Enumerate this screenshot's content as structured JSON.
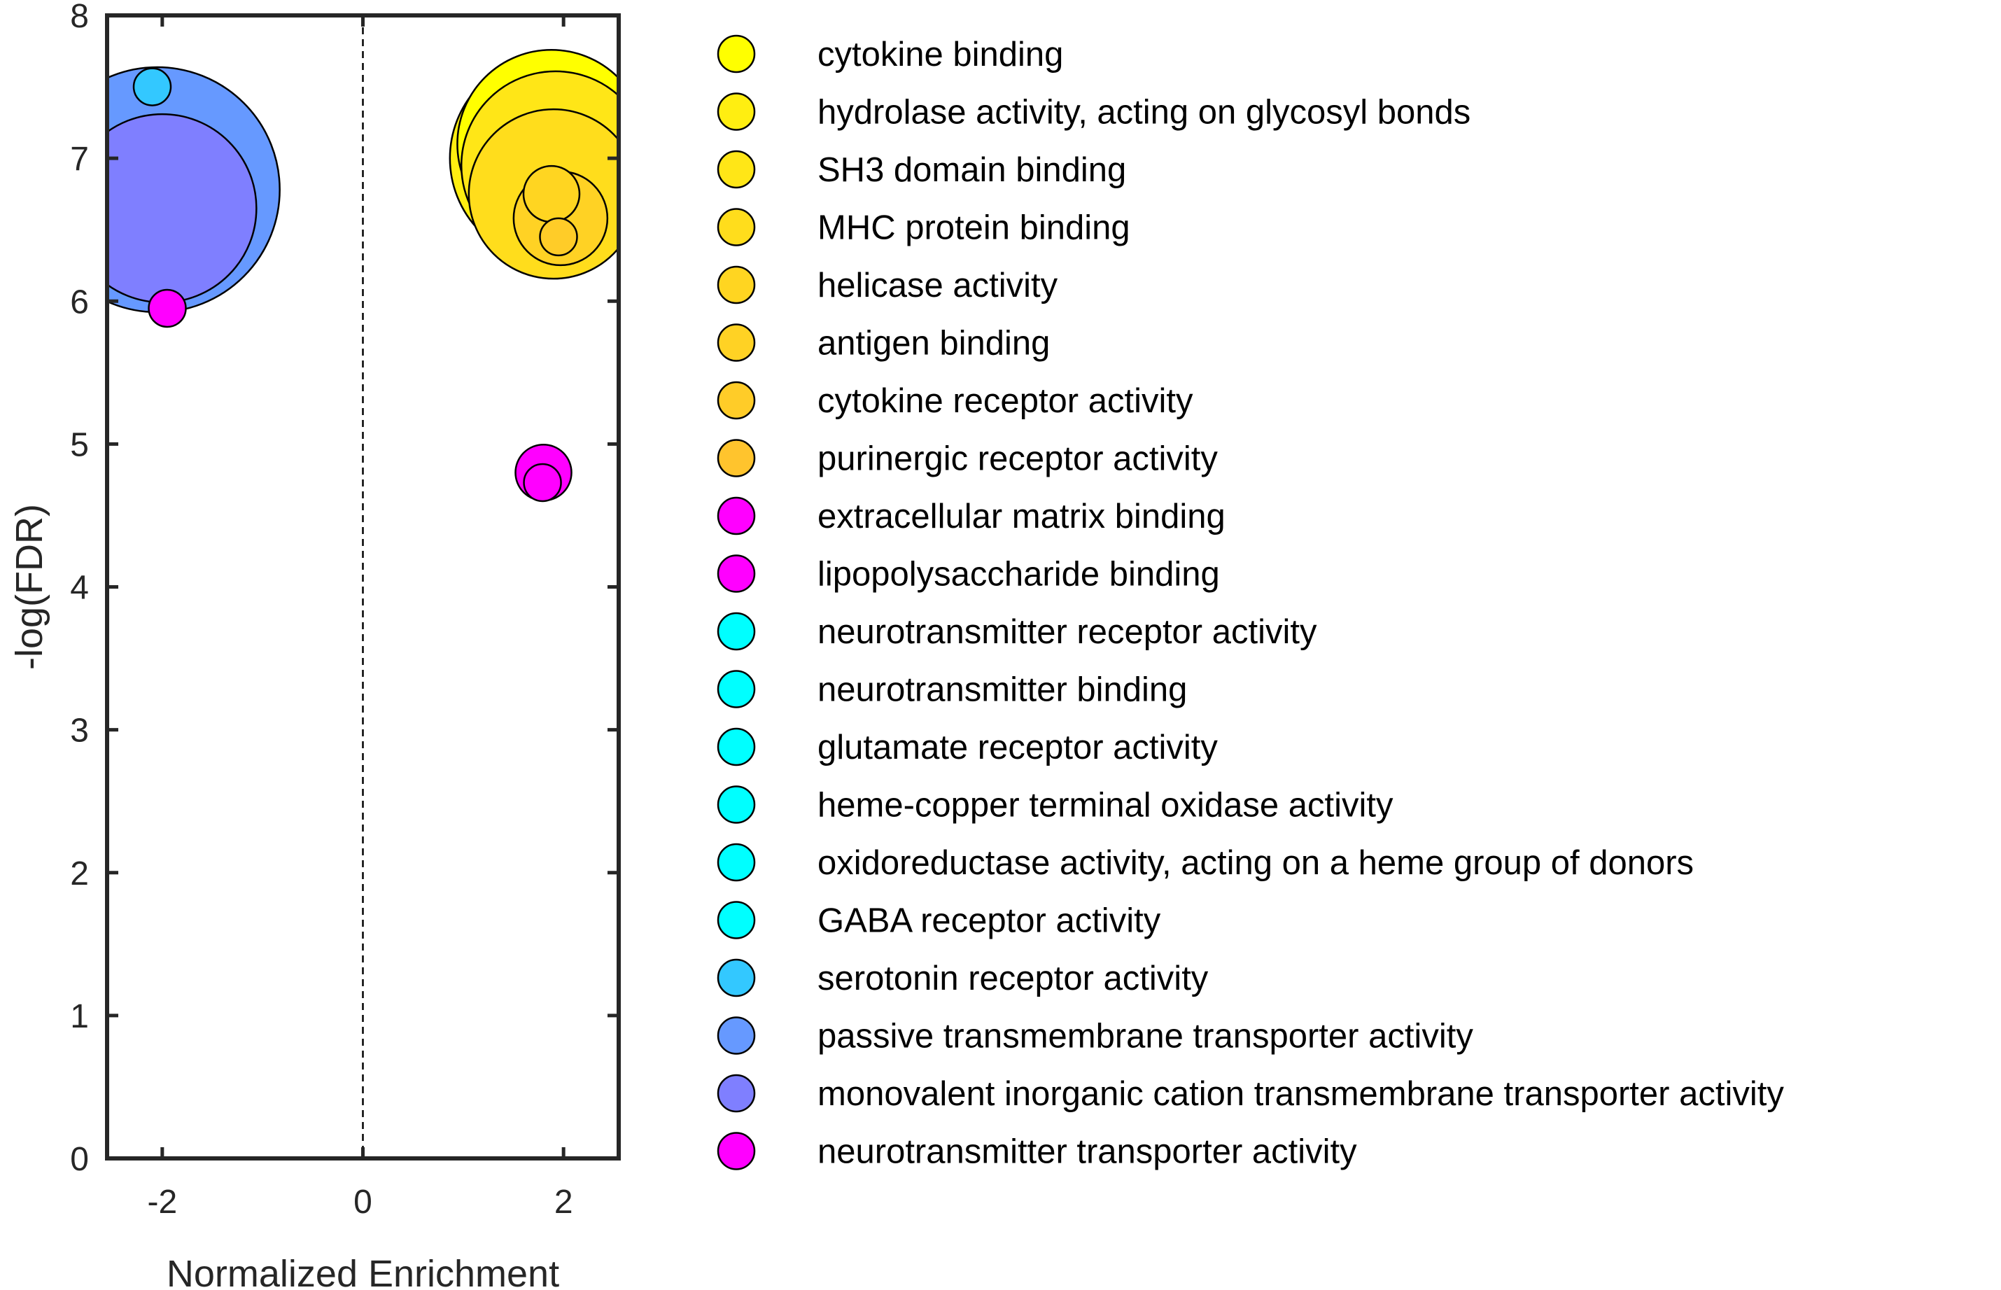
{
  "chart_data": {
    "type": "scatter",
    "title": "",
    "xlabel": "Normalized Enrichment",
    "ylabel": "-log(FDR)",
    "xlim": [
      -2.55,
      2.55
    ],
    "ylim": [
      0,
      8
    ],
    "xticks": [
      -2,
      0,
      2
    ],
    "yticks": [
      0,
      1,
      2,
      3,
      4,
      5,
      6,
      7,
      8
    ],
    "x_tick_labels": [
      "-2",
      "0",
      "2"
    ],
    "y_tick_labels": [
      "0",
      "1",
      "2",
      "3",
      "4",
      "5",
      "6",
      "7",
      "8"
    ],
    "grid": false,
    "reference_line": {
      "x": 0,
      "style": "dashed"
    },
    "legend_position": "right",
    "series": [
      {
        "name": "cytokine binding",
        "color": "#ffff00",
        "points": [
          {
            "x": 1.88,
            "y": 7.1,
            "size": 9
          }
        ]
      },
      {
        "name": "hydrolase activity, acting on glycosyl bonds",
        "color": "#ffee11",
        "points": [
          {
            "x": 1.9,
            "y": 7.0,
            "size": 10
          }
        ]
      },
      {
        "name": "SH3 domain binding",
        "color": "#ffe617",
        "points": [
          {
            "x": 1.92,
            "y": 6.95,
            "size": 9
          }
        ]
      },
      {
        "name": "MHC protein binding",
        "color": "#ffdd1c",
        "points": [
          {
            "x": 1.9,
            "y": 6.75,
            "size": 8
          }
        ]
      },
      {
        "name": "helicase activity",
        "color": "#ffd521",
        "points": [
          {
            "x": 1.88,
            "y": 6.75,
            "size": 2
          }
        ]
      },
      {
        "name": "antigen binding",
        "color": "#ffd224",
        "points": [
          {
            "x": 1.97,
            "y": 6.58,
            "size": 4
          }
        ]
      },
      {
        "name": "cytokine receptor activity",
        "color": "#ffcc28",
        "points": [
          {
            "x": 1.95,
            "y": 6.45,
            "size": 1
          }
        ]
      },
      {
        "name": "purinergic receptor activity",
        "color": "#ffc42d",
        "points": []
      },
      {
        "name": "extracellular matrix binding",
        "color": "#ff00ff",
        "points": [
          {
            "x": 1.8,
            "y": 4.8,
            "size": 2
          }
        ]
      },
      {
        "name": "lipopolysaccharide binding",
        "color": "#ff00ff",
        "points": [
          {
            "x": 1.79,
            "y": 4.73,
            "size": 1
          }
        ]
      },
      {
        "name": "neurotransmitter receptor activity",
        "color": "#00ffff",
        "points": []
      },
      {
        "name": "neurotransmitter binding",
        "color": "#00ffff",
        "points": []
      },
      {
        "name": "glutamate receptor activity",
        "color": "#00ffff",
        "points": []
      },
      {
        "name": "heme-copper terminal oxidase activity",
        "color": "#00ffff",
        "points": []
      },
      {
        "name": "oxidoreductase activity, acting on a heme group of donors",
        "color": "#00ffff",
        "points": []
      },
      {
        "name": "GABA receptor activity",
        "color": "#00ffff",
        "points": []
      },
      {
        "name": "serotonin receptor activity",
        "color": "#33c8ff",
        "points": [
          {
            "x": -2.1,
            "y": 7.5,
            "size": 1
          }
        ]
      },
      {
        "name": "passive transmembrane transporter activity",
        "color": "#6699ff",
        "points": [
          {
            "x": -2.05,
            "y": 6.78,
            "size": 12
          }
        ]
      },
      {
        "name": "monovalent inorganic cation transmembrane transporter activity",
        "color": "#7f7fff",
        "points": [
          {
            "x": -2.0,
            "y": 6.65,
            "size": 9
          }
        ]
      },
      {
        "name": "neurotransmitter transporter activity",
        "color": "#ff00ff",
        "points": [
          {
            "x": -1.95,
            "y": 5.95,
            "size": 1
          }
        ]
      }
    ]
  }
}
